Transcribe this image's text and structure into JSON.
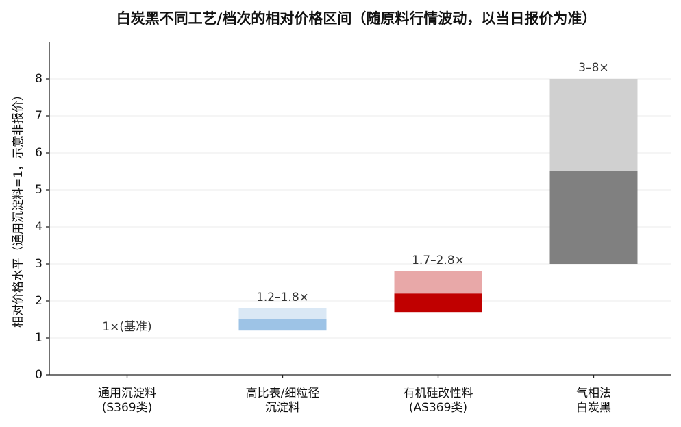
{
  "chart_data": {
    "type": "range-bar",
    "title": "白炭黑不同工艺/档次的相对价格区间（随原料行情波动，以当日报价为准）",
    "y_label": "相对价格水平（通用沉淀料=1，示意非报价）",
    "categories": [
      [
        "通用沉淀料",
        "(S369类)"
      ],
      [
        "高比表/细粒径",
        "沉淀料"
      ],
      [
        "有机硅改性料",
        "(AS369类)"
      ],
      [
        "气相法",
        "白炭黑"
      ]
    ],
    "low": [
      1,
      1.2,
      1.7,
      3
    ],
    "mid": [
      null,
      1.5,
      2.2,
      5.5
    ],
    "high": [
      null,
      1.8,
      2.8,
      8
    ],
    "value_labels": [
      "1×(基准)",
      "1.2–1.8×",
      "1.7–2.8×",
      "3–8×"
    ],
    "dark_colors": [
      null,
      "#9dc3e6",
      "#c00000",
      "#808080"
    ],
    "light_colors": [
      null,
      "#dae8f5",
      "#e8a8a8",
      "#d0d0d0"
    ],
    "ylim": [
      0,
      9
    ],
    "yticks": [
      0,
      1,
      2,
      3,
      4,
      5,
      6,
      7,
      8
    ],
    "grid": true
  }
}
